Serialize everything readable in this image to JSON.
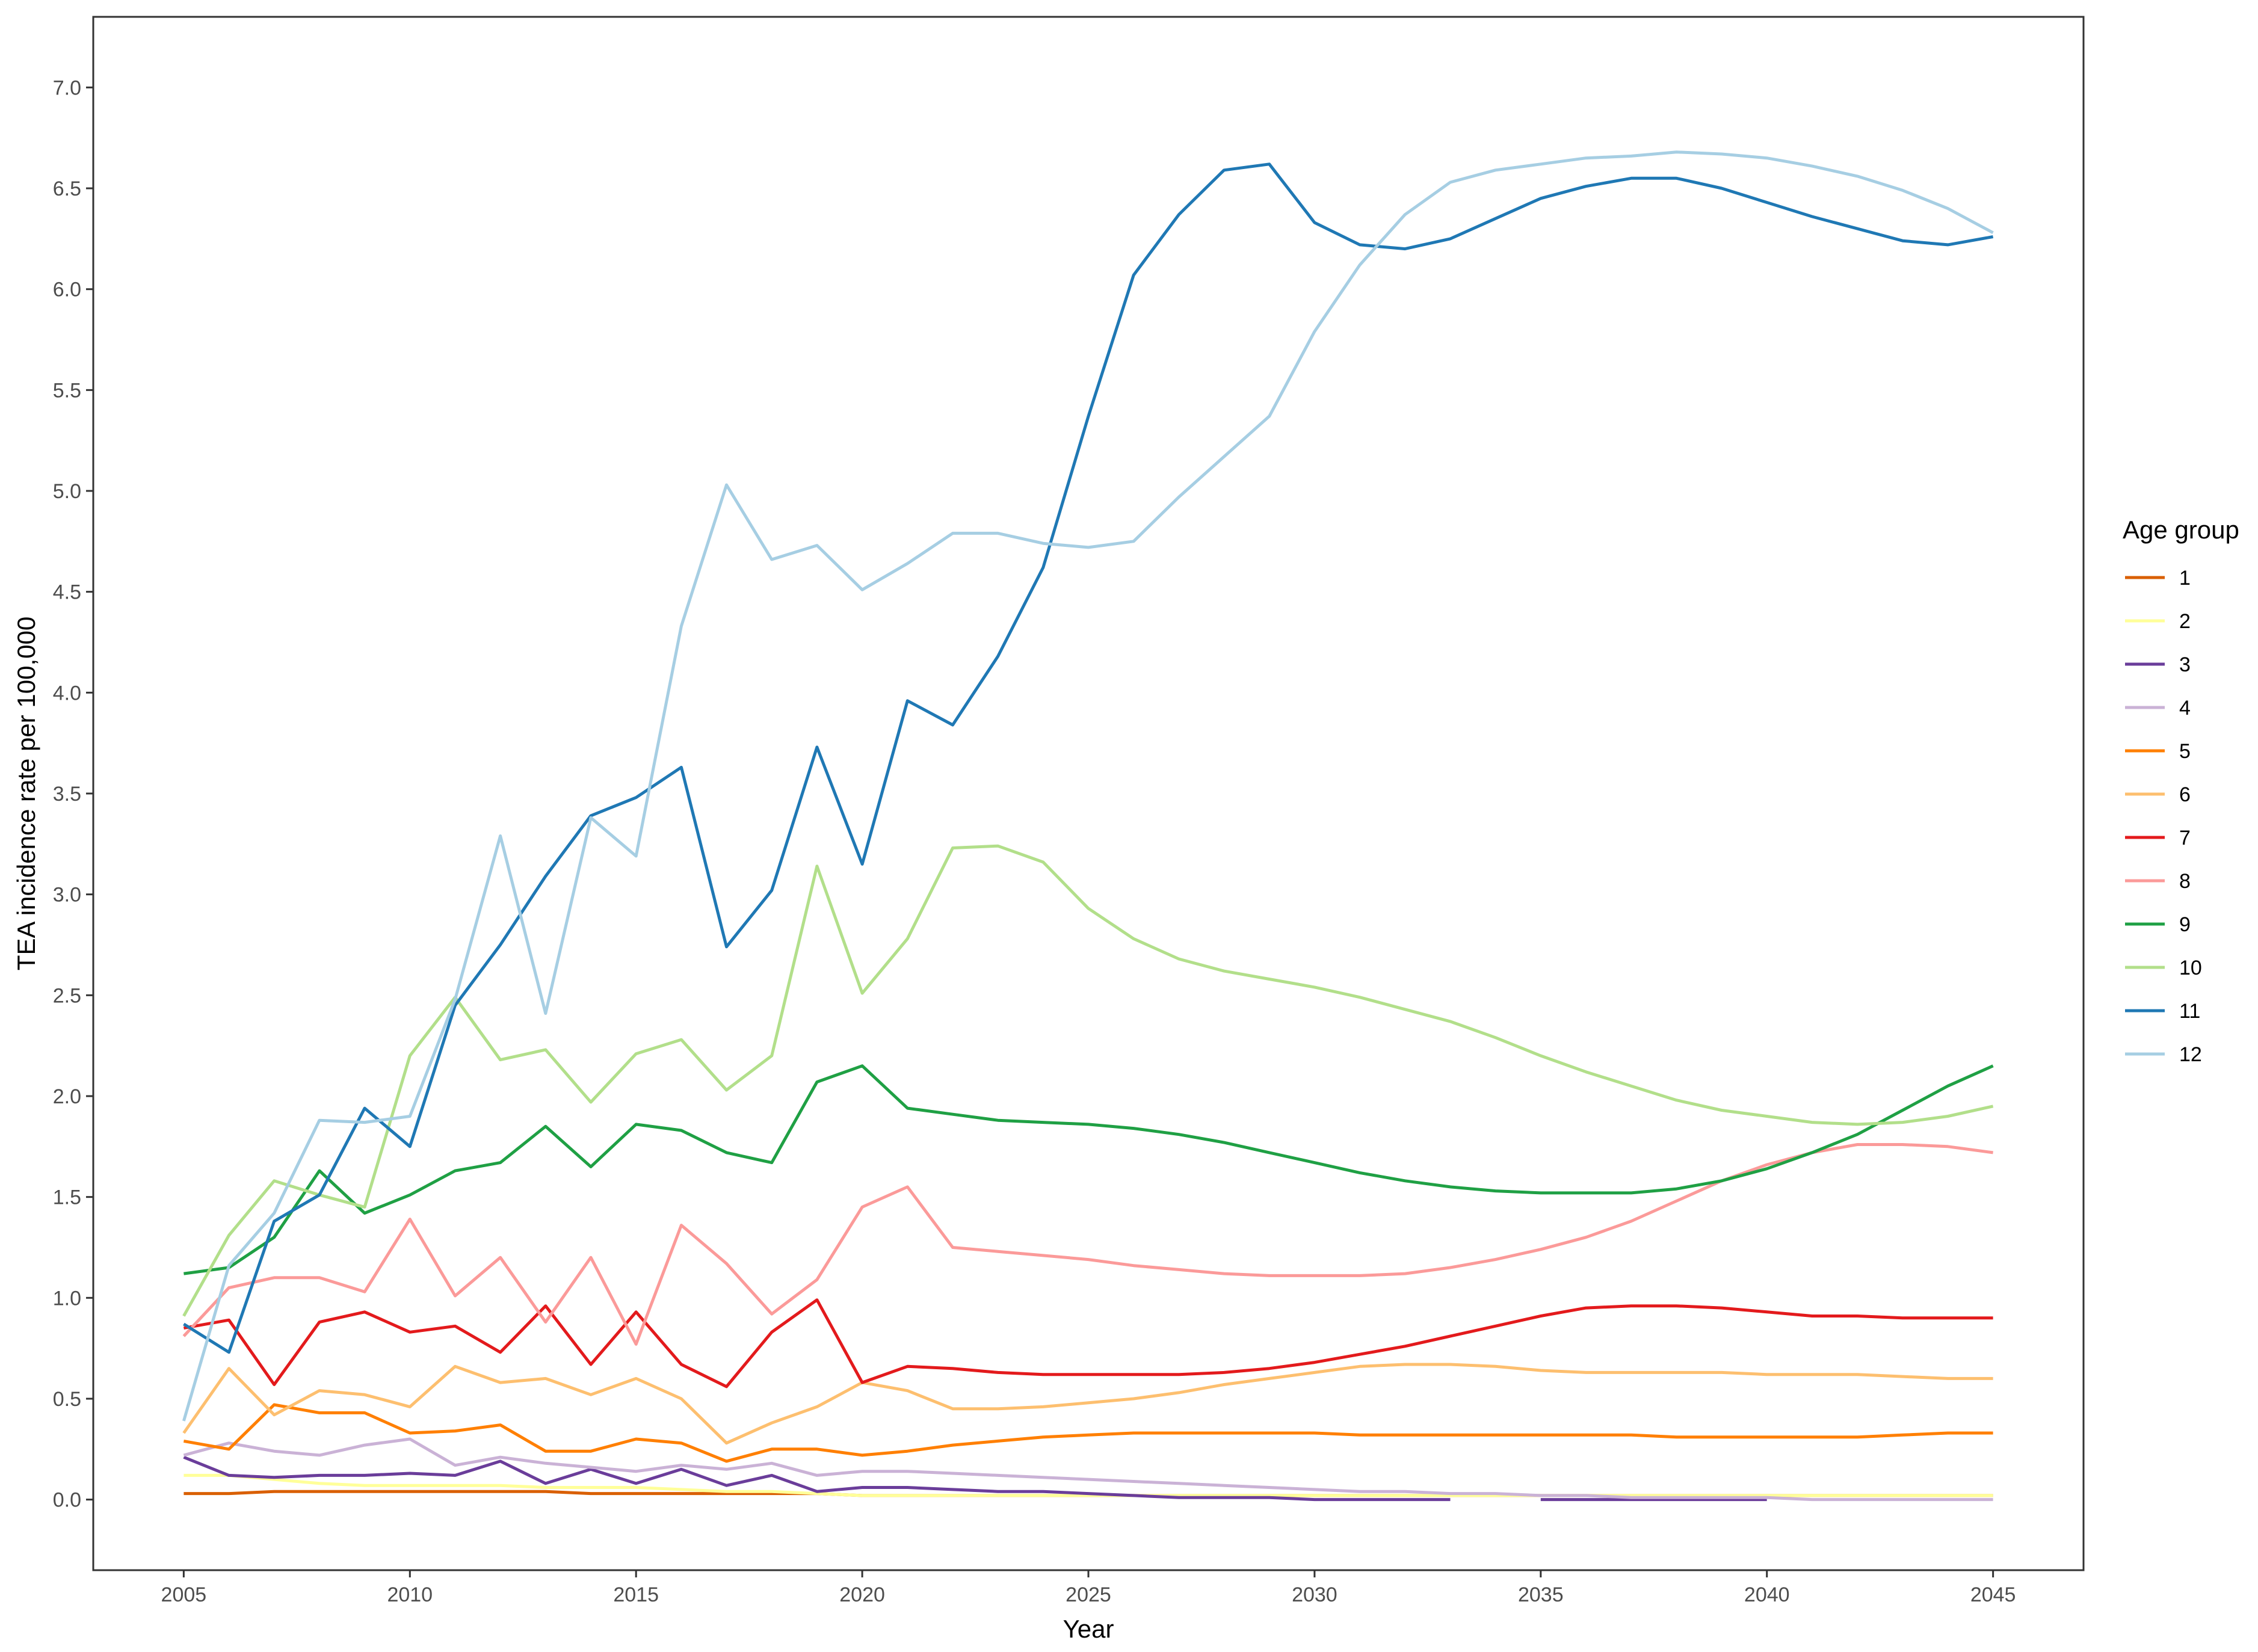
{
  "chart_data": {
    "type": "line",
    "xlabel": "Year",
    "ylabel": "TEA incidence rate per 100,000",
    "xlim": [
      2003.0,
      2047.0
    ],
    "ylim": [
      -0.35,
      7.35
    ],
    "x_ticks": [
      2005,
      2010,
      2015,
      2020,
      2025,
      2030,
      2035,
      2040,
      2045
    ],
    "y_ticks": [
      "0.0",
      "0.5",
      "1.0",
      "1.5",
      "2.0",
      "2.5",
      "3.0",
      "3.5",
      "4.0",
      "4.5",
      "5.0",
      "5.5",
      "6.0",
      "6.5",
      "7.0"
    ],
    "grid": false,
    "legend_title": "Age group",
    "legend_position": "right",
    "x": [
      2005,
      2006,
      2007,
      2008,
      2009,
      2010,
      2011,
      2012,
      2013,
      2014,
      2015,
      2016,
      2017,
      2018,
      2019,
      2020,
      2021,
      2022,
      2023,
      2024,
      2025,
      2026,
      2027,
      2028,
      2029,
      2030,
      2031,
      2032,
      2033,
      2034,
      2035,
      2036,
      2037,
      2038,
      2039,
      2040,
      2041,
      2042,
      2043,
      2044,
      2045
    ],
    "series": [
      {
        "name": "1",
        "color": "#d95f02",
        "values": [
          0.03,
          0.03,
          0.04,
          0.04,
          0.04,
          0.04,
          0.04,
          0.04,
          0.04,
          0.03,
          0.03,
          0.03,
          0.03,
          0.03,
          0.03,
          0.02,
          0.02,
          0.02,
          0.02,
          0.02,
          0.02,
          0.02,
          0.02,
          0.02,
          0.02,
          0.02,
          0.02,
          0.02,
          0.02,
          0.02,
          0.02,
          0.02,
          0.02,
          0.02,
          0.02,
          0.02,
          0.02,
          0.02,
          0.02,
          0.02,
          0.02
        ]
      },
      {
        "name": "2",
        "color": "#ffff99",
        "values": [
          0.12,
          0.12,
          0.1,
          0.08,
          0.07,
          0.07,
          0.07,
          0.07,
          0.06,
          0.06,
          0.06,
          0.05,
          0.04,
          0.04,
          0.03,
          0.02,
          0.02,
          0.02,
          0.02,
          0.02,
          0.02,
          0.02,
          0.02,
          0.02,
          0.02,
          0.02,
          0.02,
          0.02,
          0.02,
          0.02,
          0.02,
          0.02,
          0.02,
          0.02,
          0.02,
          0.02,
          0.02,
          0.02,
          0.02,
          0.02,
          0.02
        ]
      },
      {
        "name": "3",
        "color": "#6a3d9a",
        "values": [
          0.21,
          0.12,
          0.11,
          0.12,
          0.12,
          0.13,
          0.12,
          0.19,
          0.08,
          0.15,
          0.08,
          0.15,
          0.07,
          0.12,
          0.04,
          0.06,
          0.06,
          0.05,
          0.04,
          0.04,
          0.03,
          0.02,
          0.01,
          0.01,
          0.01,
          0.0,
          0.0,
          0.0,
          0.0,
          null,
          0.0,
          0.0,
          0.0,
          0.0,
          0.0,
          0.0,
          null,
          null,
          null,
          null,
          null
        ]
      },
      {
        "name": "4",
        "color": "#cab2d6",
        "values": [
          0.22,
          0.28,
          0.24,
          0.22,
          0.27,
          0.3,
          0.17,
          0.21,
          0.18,
          0.16,
          0.14,
          0.17,
          0.15,
          0.18,
          0.12,
          0.14,
          0.14,
          0.13,
          0.12,
          0.11,
          0.1,
          0.09,
          0.08,
          0.07,
          0.06,
          0.05,
          0.04,
          0.04,
          0.03,
          0.03,
          0.02,
          0.02,
          0.01,
          0.01,
          0.01,
          0.01,
          0.0,
          0.0,
          0.0,
          0.0,
          0.0
        ]
      },
      {
        "name": "5",
        "color": "#ff7f00",
        "values": [
          0.29,
          0.25,
          0.47,
          0.43,
          0.43,
          0.33,
          0.34,
          0.37,
          0.24,
          0.24,
          0.3,
          0.28,
          0.19,
          0.25,
          0.25,
          0.22,
          0.24,
          0.27,
          0.29,
          0.31,
          0.32,
          0.33,
          0.33,
          0.33,
          0.33,
          0.33,
          0.32,
          0.32,
          0.32,
          0.32,
          0.32,
          0.32,
          0.32,
          0.31,
          0.31,
          0.31,
          0.31,
          0.31,
          0.32,
          0.33,
          0.33
        ]
      },
      {
        "name": "6",
        "color": "#fdbf6f",
        "values": [
          0.33,
          0.65,
          0.42,
          0.54,
          0.52,
          0.46,
          0.66,
          0.58,
          0.6,
          0.52,
          0.6,
          0.5,
          0.28,
          0.38,
          0.46,
          0.58,
          0.54,
          0.45,
          0.45,
          0.46,
          0.48,
          0.5,
          0.53,
          0.57,
          0.6,
          0.63,
          0.66,
          0.67,
          0.67,
          0.66,
          0.64,
          0.63,
          0.63,
          0.63,
          0.63,
          0.62,
          0.62,
          0.62,
          0.61,
          0.6,
          0.6
        ]
      },
      {
        "name": "7",
        "color": "#e31a1c",
        "values": [
          0.85,
          0.89,
          0.57,
          0.88,
          0.93,
          0.83,
          0.86,
          0.73,
          0.96,
          0.67,
          0.93,
          0.67,
          0.56,
          0.83,
          0.99,
          0.58,
          0.66,
          0.65,
          0.63,
          0.62,
          0.62,
          0.62,
          0.62,
          0.63,
          0.65,
          0.68,
          0.72,
          0.76,
          0.81,
          0.86,
          0.91,
          0.95,
          0.96,
          0.96,
          0.95,
          0.93,
          0.91,
          0.91,
          0.9,
          0.9,
          0.9
        ]
      },
      {
        "name": "8",
        "color": "#fb9a99",
        "values": [
          0.81,
          1.05,
          1.1,
          1.1,
          1.03,
          1.39,
          1.01,
          1.2,
          0.88,
          1.2,
          0.77,
          1.36,
          1.17,
          0.92,
          1.09,
          1.45,
          1.55,
          1.25,
          1.23,
          1.21,
          1.19,
          1.16,
          1.14,
          1.12,
          1.11,
          1.11,
          1.11,
          1.12,
          1.15,
          1.19,
          1.24,
          1.3,
          1.38,
          1.48,
          1.58,
          1.66,
          1.72,
          1.76,
          1.76,
          1.75,
          1.72
        ]
      },
      {
        "name": "9",
        "color": "#1fa044",
        "values": [
          1.12,
          1.15,
          1.3,
          1.63,
          1.42,
          1.51,
          1.63,
          1.67,
          1.85,
          1.65,
          1.86,
          1.83,
          1.72,
          1.67,
          2.07,
          2.15,
          1.94,
          1.91,
          1.88,
          1.87,
          1.86,
          1.84,
          1.81,
          1.77,
          1.72,
          1.67,
          1.62,
          1.58,
          1.55,
          1.53,
          1.52,
          1.52,
          1.52,
          1.54,
          1.58,
          1.64,
          1.72,
          1.81,
          1.93,
          2.05,
          2.15
        ]
      },
      {
        "name": "10",
        "color": "#b2df8a",
        "values": [
          0.91,
          1.31,
          1.58,
          1.51,
          1.45,
          2.2,
          2.49,
          2.18,
          2.23,
          1.97,
          2.21,
          2.28,
          2.03,
          2.2,
          3.14,
          2.51,
          2.78,
          3.23,
          3.24,
          3.16,
          2.93,
          2.78,
          2.68,
          2.62,
          2.58,
          2.54,
          2.49,
          2.43,
          2.37,
          2.29,
          2.2,
          2.12,
          2.05,
          1.98,
          1.93,
          1.9,
          1.87,
          1.86,
          1.87,
          1.9,
          1.95
        ]
      },
      {
        "name": "11",
        "color": "#1f78b4",
        "values": [
          0.87,
          0.73,
          1.38,
          1.51,
          1.94,
          1.75,
          2.45,
          2.75,
          3.09,
          3.39,
          3.48,
          3.63,
          2.74,
          3.02,
          3.73,
          3.15,
          3.96,
          3.84,
          4.18,
          4.62,
          5.37,
          6.07,
          6.37,
          6.59,
          6.62,
          6.33,
          6.22,
          6.2,
          6.25,
          6.35,
          6.45,
          6.51,
          6.55,
          6.55,
          6.5,
          6.43,
          6.36,
          6.3,
          6.24,
          6.22,
          6.26
        ]
      },
      {
        "name": "12",
        "color": "#a6cee3",
        "values": [
          0.39,
          1.16,
          1.42,
          1.88,
          1.87,
          1.9,
          2.48,
          3.29,
          2.41,
          3.38,
          3.19,
          4.33,
          5.03,
          4.66,
          4.73,
          4.51,
          4.64,
          4.79,
          4.79,
          4.74,
          4.72,
          4.75,
          4.97,
          5.17,
          5.37,
          5.79,
          6.12,
          6.37,
          6.53,
          6.59,
          6.62,
          6.65,
          6.66,
          6.68,
          6.67,
          6.65,
          6.61,
          6.56,
          6.49,
          6.4,
          6.28
        ]
      }
    ]
  }
}
